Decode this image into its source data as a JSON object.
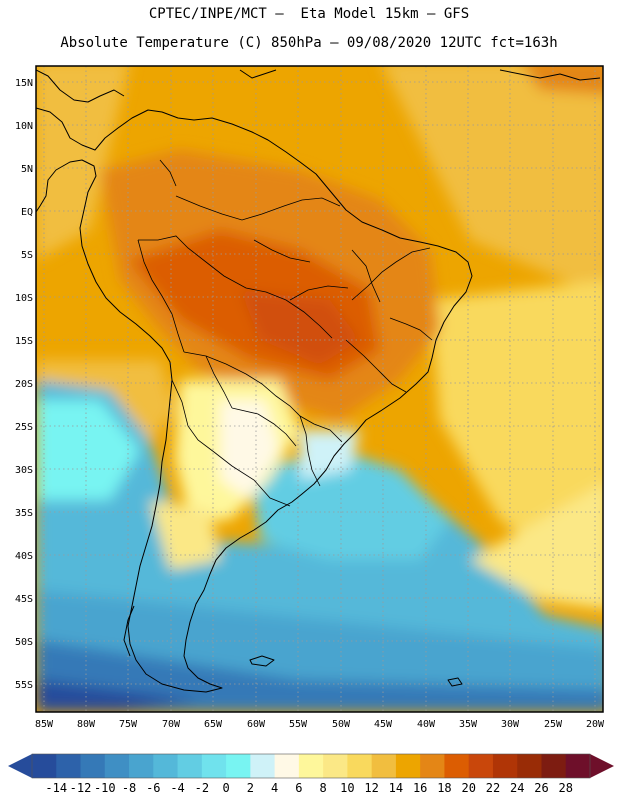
{
  "title": {
    "line1": "CPTEC/INPE/MCT –  Eta Model 15km – GFS",
    "line2": "Absolute Temperature (C) 850hPa – 09/08/2020 12UTC fct=163h"
  },
  "lat_labels": [
    "15N",
    "10N",
    "5N",
    "EQ",
    "5S",
    "10S",
    "15S",
    "20S",
    "25S",
    "30S",
    "35S",
    "40S",
    "45S",
    "50S",
    "55S"
  ],
  "lon_labels": [
    "85W",
    "80W",
    "75W",
    "70W",
    "65W",
    "60W",
    "55W",
    "50W",
    "45W",
    "40W",
    "35W",
    "30W",
    "25W",
    "20W"
  ],
  "colorbar": {
    "colors": [
      "#264c9b",
      "#2d62aa",
      "#3579b7",
      "#3f8fc4",
      "#49a4cf",
      "#54b8d9",
      "#62cde3",
      "#70e2ed",
      "#78f4f2",
      "#cff2f8",
      "#fff9e6",
      "#fef79b",
      "#fbe886",
      "#f9d95d",
      "#f1be3f",
      "#eda500",
      "#e48616",
      "#dc5d02",
      "#c9470b",
      "#b03506",
      "#992c06",
      "#7d1c11",
      "#6e0f2a"
    ],
    "labels": [
      "-14",
      "-12",
      "-10",
      "-8",
      "-6",
      "-4",
      "-2",
      "0",
      "2",
      "4",
      "6",
      "8",
      "10",
      "12",
      "14",
      "16",
      "18",
      "20",
      "22",
      "24",
      "26",
      "28"
    ]
  }
}
